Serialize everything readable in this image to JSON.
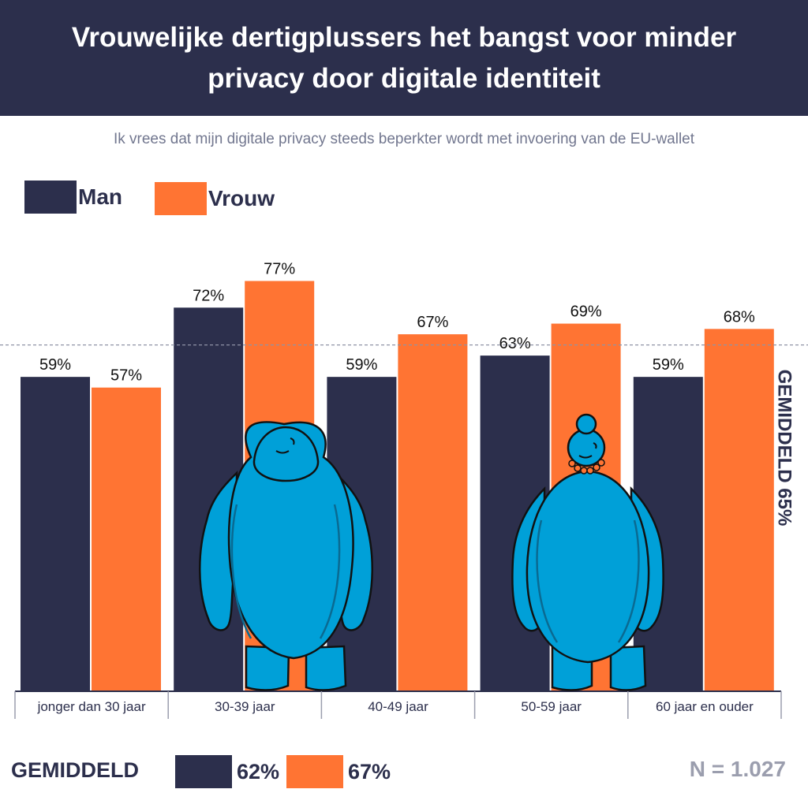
{
  "header": {
    "title": "Vrouwelijke dertigplussers het bangst voor minder privacy door digitale identiteit"
  },
  "subtitle": "Ik vrees dat mijn digitale privacy steeds beperkter wordt met invoering van de EU-wallet",
  "colors": {
    "man": "#2c2f4c",
    "vrouw": "#ff7433",
    "figure": "#00a0d8",
    "average_line": "#8f93a6",
    "muted_text": "#9b9eae"
  },
  "legend": [
    {
      "label": "Man",
      "color": "#2c2f4c"
    },
    {
      "label": "Vrouw",
      "color": "#ff7433"
    }
  ],
  "chart_data": {
    "type": "bar",
    "categories": [
      "jonger dan 30 jaar",
      "30-39 jaar",
      "40-49 jaar",
      "50-59 jaar",
      "60 jaar en ouder"
    ],
    "series": [
      {
        "name": "Man",
        "values": [
          59,
          72,
          59,
          63,
          59
        ],
        "labels": [
          "59%",
          "72%",
          "59%",
          "63%",
          "59%"
        ]
      },
      {
        "name": "Vrouw",
        "values": [
          57,
          77,
          67,
          69,
          68
        ],
        "labels": [
          "57%",
          "77%",
          "67%",
          "69%",
          "68%"
        ]
      }
    ],
    "ylim": [
      0,
      100
    ],
    "reference_line": {
      "value": 65,
      "label": "GEMIDDELD 65%"
    },
    "decorations": [
      "man-figure-icon",
      "woman-figure-icon"
    ]
  },
  "footer": {
    "label": "GEMIDDELD",
    "man_value": "62%",
    "vrouw_value": "67%",
    "n_label": "N = 1.027"
  }
}
